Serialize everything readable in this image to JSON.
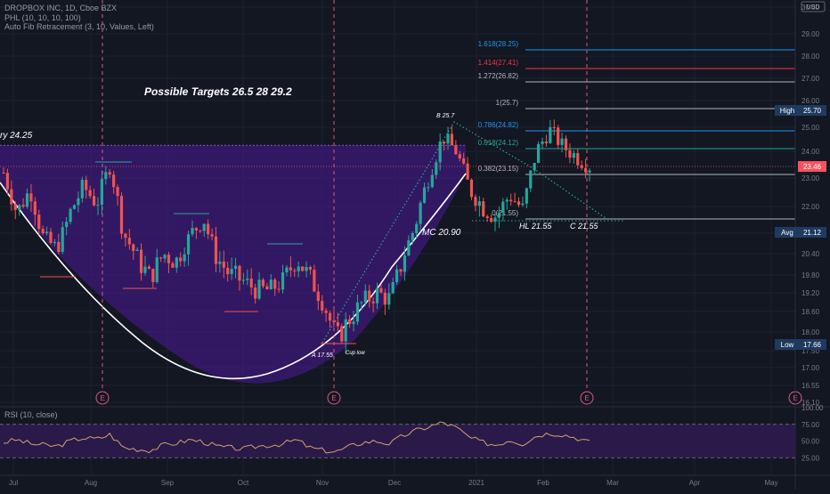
{
  "legend": {
    "symbol_line": "DROPBOX INC, 1D, Cboe BZX",
    "indicator_1": "PHL (10, 10, 10, 100)",
    "indicator_2": "Auto Fib Retracement (3, 10, Values, Left)"
  },
  "currency": "USD",
  "price_axis": {
    "ticks": [
      "30.00",
      "29.00",
      "28.00",
      "27.00",
      "26.00",
      "25.00",
      "24.00",
      "23.00",
      "22.00",
      "21.20",
      "20.40",
      "19.80",
      "19.20",
      "18.60",
      "18.00",
      "17.50",
      "17.00",
      "16.55",
      "16.10"
    ]
  },
  "badges": {
    "high": {
      "label": "High",
      "value": "25.70",
      "color": "#1e3a5f"
    },
    "last": {
      "value": "23.46",
      "color": "#f7525f"
    },
    "avg": {
      "label": "Avg",
      "value": "21.12",
      "color": "#1e3a5f"
    },
    "low": {
      "label": "Low",
      "value": "17.66",
      "color": "#1e3a5f"
    }
  },
  "fib_levels": [
    {
      "label": "1.618(28.25)",
      "color": "#2196f3"
    },
    {
      "label": "1.414(27.41)",
      "color": "#f23645"
    },
    {
      "label": "1.272(26.82)",
      "color": "#b2b5be"
    },
    {
      "label": "1(25.7)",
      "color": "#b2b5be"
    },
    {
      "label": "0.786(24.82)",
      "color": "#2196f3"
    },
    {
      "label": "0.618(24.12)",
      "color": "#26a69a"
    },
    {
      "label": "0.382(23.15)",
      "color": "#b2b5be"
    },
    {
      "label": "0(21.55)",
      "color": "#b2b5be"
    }
  ],
  "annotations": {
    "targets": "Possible Targets  26.5   28  29.2",
    "entry": "ry 24.25",
    "b_point": "B  25.7",
    "mc": "MC 20.90",
    "a_point": "A 17.55",
    "cup_low": "Cup low",
    "hl": "HL 21.55",
    "c_point": "C  21.55"
  },
  "earnings_marker": "E",
  "rsi": {
    "label": "RSI (10, close)",
    "ticks": [
      "100.00",
      "75.00",
      "50.00",
      "25.00"
    ]
  },
  "time_axis": {
    "labels": [
      "Jul",
      "Aug",
      "Sep",
      "Oct",
      "Nov",
      "Dec",
      "2021",
      "Feb",
      "Mar",
      "Apr",
      "May"
    ]
  },
  "colors": {
    "background": "#131722",
    "up_candle": "#26a69a",
    "down_candle": "#ef5350",
    "cup_fill": "#3d1a78",
    "rsi_band": "#2a1a4a",
    "rsi_line": "#d1a16b",
    "trend_line": "#26a69a"
  },
  "chart_data": {
    "type": "candlestick",
    "symbol": "DROPBOX INC",
    "x_range": [
      "Jul 2020",
      "May 2021"
    ],
    "y_range": [
      16.1,
      30.0
    ],
    "close_path": [
      [
        "Jul",
        23.2
      ],
      [
        "Jul",
        21.8
      ],
      [
        "Jul",
        22.6
      ],
      [
        "Jul",
        21.0
      ],
      [
        "Jul",
        20.6
      ],
      [
        "Jul",
        21.8
      ],
      [
        "Jul",
        22.7
      ],
      [
        "Jul",
        22.1
      ],
      [
        "Aug",
        23.5
      ],
      [
        "Aug",
        21.2
      ],
      [
        "Aug",
        20.3
      ],
      [
        "Aug",
        19.7
      ],
      [
        "Aug",
        20.4
      ],
      [
        "Aug",
        20.2
      ],
      [
        "Sep",
        21.1
      ],
      [
        "Sep",
        21.7
      ],
      [
        "Sep",
        20.3
      ],
      [
        "Sep",
        19.8
      ],
      [
        "Sep",
        19.6
      ],
      [
        "Sep",
        19.3
      ],
      [
        "Oct",
        19.3
      ],
      [
        "Oct",
        19.6
      ],
      [
        "Oct",
        20.3
      ],
      [
        "Oct",
        19.7
      ],
      [
        "Oct",
        18.9
      ],
      [
        "Nov",
        17.8
      ],
      [
        "Nov",
        18.4
      ],
      [
        "Nov",
        18.9
      ],
      [
        "Nov",
        19.2
      ],
      [
        "Nov",
        19.0
      ],
      [
        "Dec",
        20.3
      ],
      [
        "Dec",
        21.6
      ],
      [
        "Dec",
        23.2
      ],
      [
        "Dec",
        24.6
      ],
      [
        "Dec",
        24.0
      ],
      [
        "2021",
        22.6
      ],
      [
        "2021",
        22.0
      ],
      [
        "2021",
        21.7
      ],
      [
        "2021",
        22.4
      ],
      [
        "2021",
        21.9
      ],
      [
        "Feb",
        24.0
      ],
      [
        "Feb",
        24.9
      ],
      [
        "Feb",
        24.2
      ],
      [
        "Feb",
        23.8
      ],
      [
        "Feb",
        23.46
      ]
    ],
    "rsi_values": [
      48,
      52,
      46,
      44,
      42,
      50,
      55,
      53,
      60,
      40,
      38,
      36,
      44,
      47,
      52,
      49,
      42,
      40,
      38,
      42,
      44,
      46,
      52,
      40,
      36,
      34,
      42,
      48,
      50,
      46,
      58,
      66,
      72,
      78,
      70,
      55,
      48,
      44,
      52,
      46,
      58,
      62,
      60,
      55,
      48
    ]
  }
}
